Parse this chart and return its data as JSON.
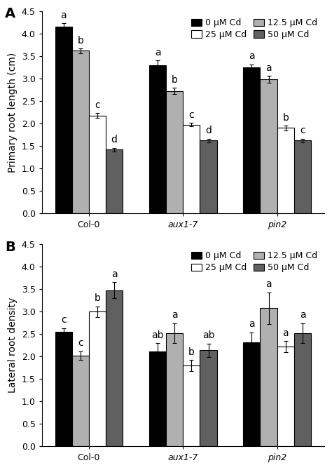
{
  "panel_A": {
    "title": "A",
    "ylabel": "Primary root length (cm)",
    "ylim": [
      0,
      4.5
    ],
    "yticks": [
      0.0,
      0.5,
      1.0,
      1.5,
      2.0,
      2.5,
      3.0,
      3.5,
      4.0,
      4.5
    ],
    "groups": [
      "Col-0",
      "aux1-7",
      "pin2"
    ],
    "group_labels_italic": [
      false,
      true,
      true
    ],
    "bars": {
      "0 μM Cd": [
        4.15,
        3.3,
        3.25
      ],
      "12.5 μM Cd": [
        3.62,
        2.72,
        2.98
      ],
      "25 μM Cd": [
        2.18,
        1.97,
        1.9
      ],
      "50 μM Cd": [
        1.42,
        1.62,
        1.62
      ]
    },
    "errors": {
      "0 μM Cd": [
        0.08,
        0.1,
        0.07
      ],
      "12.5 μM Cd": [
        0.05,
        0.07,
        0.08
      ],
      "25 μM Cd": [
        0.05,
        0.04,
        0.05
      ],
      "50 μM Cd": [
        0.04,
        0.04,
        0.04
      ]
    },
    "letters": {
      "0 μM Cd": [
        "a",
        "a",
        "a"
      ],
      "12.5 μM Cd": [
        "b",
        "b",
        "a"
      ],
      "25 μM Cd": [
        "c",
        "c",
        "b"
      ],
      "50 μM Cd": [
        "d",
        "d",
        "c"
      ]
    }
  },
  "panel_B": {
    "title": "B",
    "ylabel": "Lateral root density",
    "ylim": [
      0,
      4.5
    ],
    "yticks": [
      0.0,
      0.5,
      1.0,
      1.5,
      2.0,
      2.5,
      3.0,
      3.5,
      4.0,
      4.5
    ],
    "groups": [
      "Col-0",
      "aux1-7",
      "pin2"
    ],
    "group_labels_italic": [
      false,
      true,
      true
    ],
    "bars": {
      "0 μM Cd": [
        2.55,
        2.12,
        2.32
      ],
      "12.5 μM Cd": [
        2.02,
        2.52,
        3.08
      ],
      "25 μM Cd": [
        3.0,
        1.8,
        2.22
      ],
      "50 μM Cd": [
        3.48,
        2.14,
        2.52
      ]
    },
    "errors": {
      "0 μM Cd": [
        0.08,
        0.18,
        0.22
      ],
      "12.5 μM Cd": [
        0.1,
        0.22,
        0.35
      ],
      "25 μM Cd": [
        0.12,
        0.12,
        0.12
      ],
      "50 μM Cd": [
        0.18,
        0.15,
        0.22
      ]
    },
    "letters": {
      "0 μM Cd": [
        "c",
        "ab",
        "a"
      ],
      "12.5 μM Cd": [
        "c",
        "a",
        "a"
      ],
      "25 μM Cd": [
        "b",
        "b",
        "a"
      ],
      "50 μM Cd": [
        "a",
        "ab",
        "a"
      ]
    }
  },
  "bar_colors": {
    "0 μM Cd": "#000000",
    "12.5 μM Cd": "#b0b0b0",
    "25 μM Cd": "#ffffff",
    "50 μM Cd": "#606060"
  },
  "bar_edge_colors": {
    "0 μM Cd": "#000000",
    "12.5 μM Cd": "#000000",
    "25 μM Cd": "#000000",
    "50 μM Cd": "#000000"
  },
  "legend_order": [
    "0 μM Cd",
    "25 μM Cd",
    "12.5 μM Cd",
    "50 μM Cd"
  ],
  "bar_width": 0.18,
  "fontsize": 9,
  "letter_fontsize": 10,
  "tick_fontsize": 9,
  "label_fontsize": 10
}
